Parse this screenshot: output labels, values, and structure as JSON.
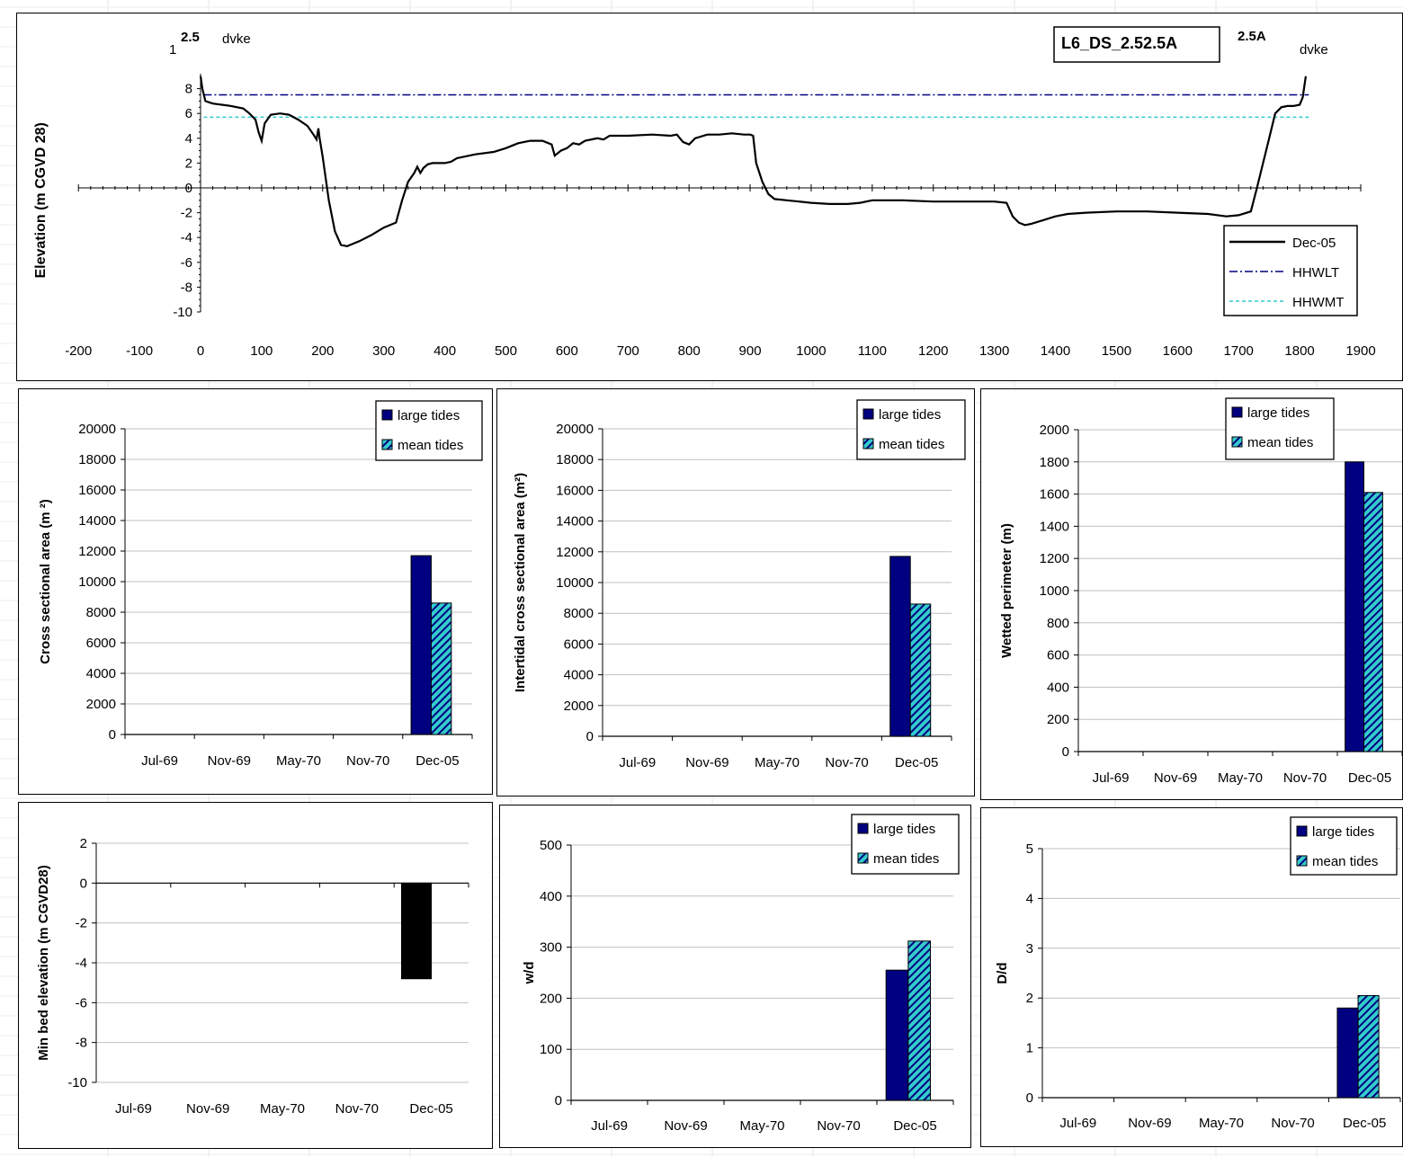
{
  "profile": {
    "section_id": "L6_DS_2.52.5A",
    "left_labels": {
      "top": "1",
      "value": "2.5",
      "word": "dvke"
    },
    "right_labels": {
      "value": "2.5A",
      "word": "dvke"
    },
    "ylabel": "Elevation (m CGVD 28)",
    "x_ticks": [
      -200,
      -100,
      0,
      100,
      200,
      300,
      400,
      500,
      600,
      700,
      800,
      900,
      1000,
      1100,
      1200,
      1300,
      1400,
      1500,
      1600,
      1700,
      1800,
      1900
    ],
    "y_ticks": [
      8,
      6,
      4,
      2,
      0,
      -2,
      -4,
      -6,
      -8,
      -10
    ],
    "legend": [
      "Dec-05",
      "HHWLT",
      "HHWMT"
    ],
    "colors": {
      "profile": "#000000",
      "hhwlt": "#000080",
      "hhwmt": "#33cccc"
    }
  },
  "colors": {
    "large": "#000080",
    "mean": "#33cccc",
    "black": "#000000",
    "grid": "#c0c0c0"
  },
  "chart_data": [
    {
      "type": "line",
      "name": "profile",
      "title": "",
      "xlabel": "",
      "ylabel": "Elevation (m CGVD 28)",
      "xlim": [
        -200,
        1900
      ],
      "ylim": [
        -10,
        8
      ],
      "series": [
        {
          "name": "Dec-05",
          "points": [
            [
              0,
              9
            ],
            [
              3,
              8
            ],
            [
              8,
              7
            ],
            [
              20,
              6.8
            ],
            [
              50,
              6.6
            ],
            [
              70,
              6.4
            ],
            [
              80,
              6
            ],
            [
              90,
              5.5
            ],
            [
              95,
              4.5
            ],
            [
              100,
              3.8
            ],
            [
              105,
              5.2
            ],
            [
              115,
              5.9
            ],
            [
              130,
              6
            ],
            [
              145,
              5.9
            ],
            [
              160,
              5.5
            ],
            [
              175,
              5
            ],
            [
              185,
              4.3
            ],
            [
              190,
              3.9
            ],
            [
              193,
              4.8
            ],
            [
              195,
              4
            ],
            [
              200,
              2.5
            ],
            [
              210,
              -1
            ],
            [
              220,
              -3.5
            ],
            [
              230,
              -4.6
            ],
            [
              240,
              -4.7
            ],
            [
              260,
              -4.3
            ],
            [
              280,
              -3.8
            ],
            [
              300,
              -3.2
            ],
            [
              310,
              -3
            ],
            [
              320,
              -2.8
            ],
            [
              330,
              -1
            ],
            [
              340,
              0.5
            ],
            [
              350,
              1.2
            ],
            [
              355,
              1.7
            ],
            [
              360,
              1.2
            ],
            [
              365,
              1.6
            ],
            [
              372,
              1.9
            ],
            [
              380,
              2
            ],
            [
              390,
              2
            ],
            [
              400,
              2
            ],
            [
              410,
              2.1
            ],
            [
              420,
              2.4
            ],
            [
              450,
              2.7
            ],
            [
              480,
              2.9
            ],
            [
              500,
              3.2
            ],
            [
              520,
              3.6
            ],
            [
              540,
              3.8
            ],
            [
              560,
              3.8
            ],
            [
              575,
              3.5
            ],
            [
              580,
              2.6
            ],
            [
              590,
              3
            ],
            [
              600,
              3.2
            ],
            [
              610,
              3.6
            ],
            [
              620,
              3.5
            ],
            [
              630,
              3.8
            ],
            [
              650,
              4
            ],
            [
              660,
              3.9
            ],
            [
              670,
              4.2
            ],
            [
              700,
              4.2
            ],
            [
              740,
              4.3
            ],
            [
              770,
              4.2
            ],
            [
              780,
              4.3
            ],
            [
              790,
              3.7
            ],
            [
              800,
              3.5
            ],
            [
              810,
              4
            ],
            [
              830,
              4.3
            ],
            [
              850,
              4.3
            ],
            [
              870,
              4.4
            ],
            [
              890,
              4.3
            ],
            [
              900,
              4.3
            ],
            [
              905,
              4.2
            ],
            [
              910,
              2
            ],
            [
              920,
              0.5
            ],
            [
              930,
              -0.5
            ],
            [
              940,
              -0.9
            ],
            [
              960,
              -1
            ],
            [
              980,
              -1.1
            ],
            [
              1000,
              -1.2
            ],
            [
              1030,
              -1.3
            ],
            [
              1060,
              -1.3
            ],
            [
              1080,
              -1.2
            ],
            [
              1100,
              -1
            ],
            [
              1150,
              -1
            ],
            [
              1200,
              -1.1
            ],
            [
              1250,
              -1.1
            ],
            [
              1300,
              -1.1
            ],
            [
              1320,
              -1.2
            ],
            [
              1330,
              -2.3
            ],
            [
              1340,
              -2.8
            ],
            [
              1350,
              -3
            ],
            [
              1360,
              -2.9
            ],
            [
              1380,
              -2.6
            ],
            [
              1400,
              -2.3
            ],
            [
              1420,
              -2.1
            ],
            [
              1450,
              -2
            ],
            [
              1500,
              -1.9
            ],
            [
              1550,
              -1.9
            ],
            [
              1600,
              -2
            ],
            [
              1650,
              -2.1
            ],
            [
              1680,
              -2.3
            ],
            [
              1700,
              -2.2
            ],
            [
              1720,
              -1.9
            ],
            [
              1730,
              0
            ],
            [
              1740,
              2
            ],
            [
              1750,
              4
            ],
            [
              1760,
              6
            ],
            [
              1770,
              6.5
            ],
            [
              1780,
              6.6
            ],
            [
              1790,
              6.6
            ],
            [
              1800,
              6.7
            ],
            [
              1805,
              7.3
            ],
            [
              1810,
              9
            ]
          ]
        },
        {
          "name": "HHWLT",
          "value": 7.5
        },
        {
          "name": "HHWMT",
          "value": 5.7
        }
      ]
    },
    {
      "type": "bar",
      "name": "cross-sectional-area",
      "categories": [
        "Jul-69",
        "Nov-69",
        "May-70",
        "Nov-70",
        "Dec-05"
      ],
      "ylabel": "Cross sectional area (m  ²)",
      "ylim": [
        0,
        20000
      ],
      "y_ticks": [
        20000,
        18000,
        16000,
        14000,
        12000,
        10000,
        8000,
        6000,
        4000,
        2000,
        0
      ],
      "legend": [
        "large tides",
        "mean tides"
      ],
      "series": [
        {
          "name": "large tides",
          "values": [
            null,
            null,
            null,
            null,
            11700
          ]
        },
        {
          "name": "mean tides",
          "values": [
            null,
            null,
            null,
            null,
            8600
          ]
        }
      ]
    },
    {
      "type": "bar",
      "name": "intertidal-area",
      "categories": [
        "Jul-69",
        "Nov-69",
        "May-70",
        "Nov-70",
        "Dec-05"
      ],
      "ylabel": "Intertidal cross sectional area (m²)",
      "ylim": [
        0,
        20000
      ],
      "y_ticks": [
        20000,
        18000,
        16000,
        14000,
        12000,
        10000,
        8000,
        6000,
        4000,
        2000,
        0
      ],
      "legend": [
        "large tides",
        "mean tides"
      ],
      "series": [
        {
          "name": "large tides",
          "values": [
            null,
            null,
            null,
            null,
            11700
          ]
        },
        {
          "name": "mean tides",
          "values": [
            null,
            null,
            null,
            null,
            8600
          ]
        }
      ]
    },
    {
      "type": "bar",
      "name": "wetted-perimeter",
      "categories": [
        "Jul-69",
        "Nov-69",
        "May-70",
        "Nov-70",
        "Dec-05"
      ],
      "ylabel": "Wetted perimeter (m)",
      "ylim": [
        0,
        2000
      ],
      "y_ticks": [
        2000,
        1800,
        1600,
        1400,
        1200,
        1000,
        800,
        600,
        400,
        200,
        0
      ],
      "legend": [
        "large tides",
        "mean tides"
      ],
      "series": [
        {
          "name": "large tides",
          "values": [
            null,
            null,
            null,
            null,
            1800
          ]
        },
        {
          "name": "mean tides",
          "values": [
            null,
            null,
            null,
            null,
            1610
          ]
        }
      ]
    },
    {
      "type": "bar",
      "name": "min-bed-elevation",
      "categories": [
        "Jul-69",
        "Nov-69",
        "May-70",
        "Nov-70",
        "Dec-05"
      ],
      "ylabel": "Min bed elevation (m CGVD28)",
      "ylim": [
        -10,
        2
      ],
      "y_ticks": [
        2,
        0,
        -2,
        -4,
        -6,
        -8,
        -10
      ],
      "legend": [],
      "series": [
        {
          "values": [
            null,
            null,
            null,
            null,
            -4.8
          ]
        }
      ]
    },
    {
      "type": "bar",
      "name": "w-d-ratio",
      "categories": [
        "Jul-69",
        "Nov-69",
        "May-70",
        "Nov-70",
        "Dec-05"
      ],
      "ylabel": "w/d",
      "ylim": [
        0,
        500
      ],
      "y_ticks": [
        500,
        400,
        300,
        200,
        100,
        0
      ],
      "legend": [
        "large tides",
        "mean tides"
      ],
      "series": [
        {
          "name": "large tides",
          "values": [
            null,
            null,
            null,
            null,
            255
          ]
        },
        {
          "name": "mean tides",
          "values": [
            null,
            null,
            null,
            null,
            312
          ]
        }
      ]
    },
    {
      "type": "bar",
      "name": "d-ratio",
      "categories": [
        "Jul-69",
        "Nov-69",
        "May-70",
        "Nov-70",
        "Dec-05"
      ],
      "ylabel": "D/d",
      "ylim": [
        0,
        5
      ],
      "y_ticks": [
        5,
        4,
        3,
        2,
        1,
        0
      ],
      "legend": [
        "large tides",
        "mean tides"
      ],
      "series": [
        {
          "name": "large tides",
          "values": [
            null,
            null,
            null,
            null,
            1.8
          ]
        },
        {
          "name": "mean tides",
          "values": [
            null,
            null,
            null,
            null,
            2.05
          ]
        }
      ]
    }
  ]
}
